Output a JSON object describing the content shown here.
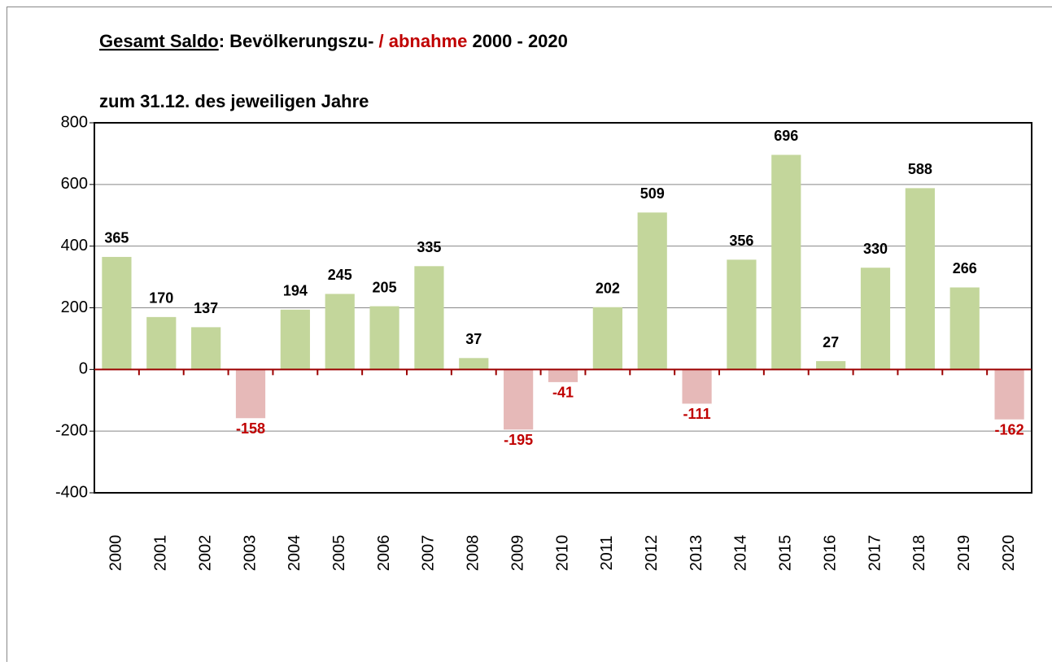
{
  "chart_data": {
    "type": "bar",
    "title_parts": [
      "Gesamt Saldo",
      ": Bevölkerungszu- ",
      "/ abnahme",
      " 2000 - 2020"
    ],
    "subtitle": "zum 31.12. des jeweiligen Jahre",
    "categories": [
      "2000",
      "2001",
      "2002",
      "2003",
      "2004",
      "2005",
      "2006",
      "2007",
      "2008",
      "2009",
      "2010",
      "2011",
      "2012",
      "2013",
      "2014",
      "2015",
      "2016",
      "2017",
      "2018",
      "2019",
      "2020"
    ],
    "values": [
      365,
      170,
      137,
      -158,
      194,
      245,
      205,
      335,
      37,
      -195,
      -41,
      202,
      509,
      -111,
      356,
      696,
      27,
      330,
      588,
      266,
      -162
    ],
    "color": "#c3d69b",
    "negative_color": "#e6b9b8",
    "label_color": "#000000",
    "negative_label_color": "#c00000",
    "ylim": [
      -400,
      800
    ],
    "yticks": [
      -400,
      -200,
      0,
      200,
      400,
      600,
      800
    ],
    "grid": true
  }
}
